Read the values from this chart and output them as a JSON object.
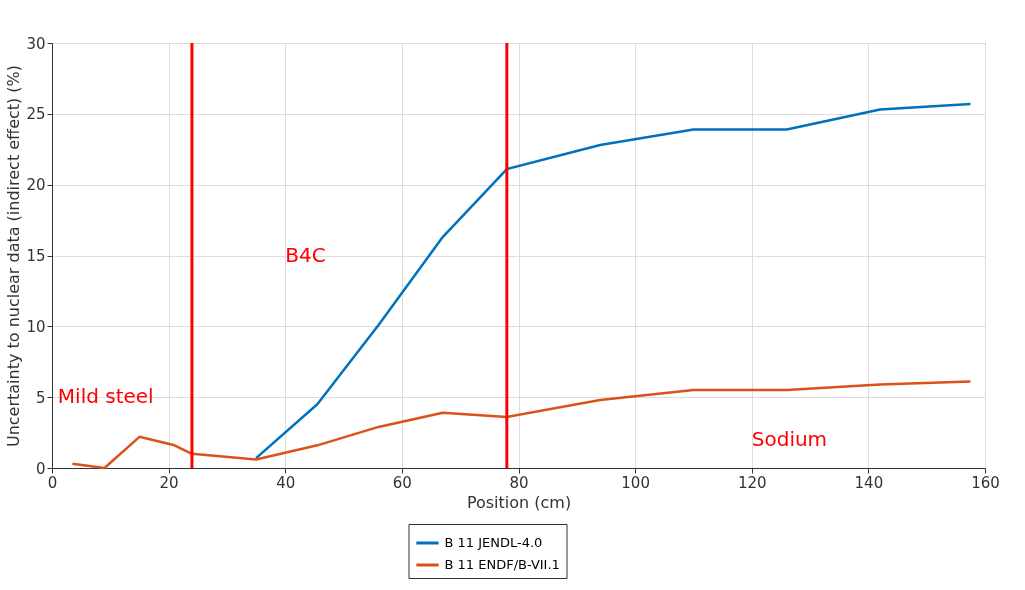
{
  "chart_data": {
    "type": "line",
    "xlabel": "Position (cm)",
    "ylabel": "Uncertainty to nuclear data (indirect effect) (%)",
    "x": [
      3.5,
      9,
      15,
      21,
      24,
      35,
      45.5,
      56,
      67,
      78,
      94,
      110,
      126,
      142,
      157.5
    ],
    "series": [
      {
        "name": "B 11 JENDL-4.0",
        "color": "#0072bd",
        "values": [
          null,
          null,
          null,
          null,
          null,
          0.7,
          4.5,
          10.1,
          16.3,
          21.1,
          22.8,
          23.9,
          23.9,
          25.3,
          25.7
        ]
      },
      {
        "name": "B 11 ENDF/B-VII.1",
        "color": "#d95319",
        "values": [
          0.3,
          0.0,
          2.2,
          1.6,
          1.0,
          0.6,
          1.6,
          2.9,
          3.9,
          3.6,
          4.8,
          5.5,
          5.5,
          5.9,
          6.1
        ]
      }
    ],
    "xlim": [
      0,
      160
    ],
    "xticks": [
      0,
      20,
      40,
      60,
      80,
      100,
      120,
      140,
      160
    ],
    "ylim": [
      0,
      30
    ],
    "yticks": [
      0,
      5,
      10,
      15,
      20,
      25,
      30
    ],
    "ref_lines": [
      {
        "axis": "x",
        "value": 24,
        "color": "#ff0000"
      },
      {
        "axis": "x",
        "value": 78,
        "color": "#ff0000"
      }
    ],
    "annotations": [
      "Mild steel",
      "B4C",
      "Sodium"
    ],
    "grid": true,
    "legend": "bottom",
    "marker": "none",
    "line_style": "solid"
  }
}
